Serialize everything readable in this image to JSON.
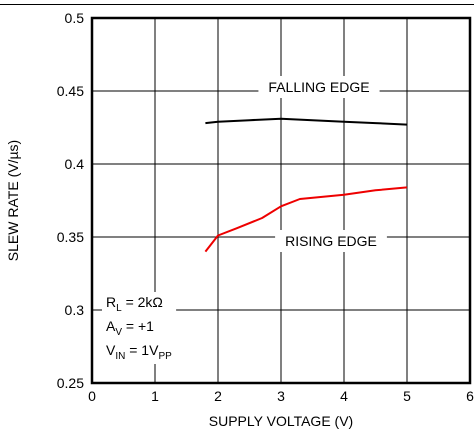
{
  "chart_data": {
    "type": "line",
    "xlabel": "SUPPLY VOLTAGE (V)",
    "ylabel": "SLEW RATE (V/µs)",
    "xlim": [
      0,
      6
    ],
    "ylim": [
      0.25,
      0.5
    ],
    "x_ticks": [
      "0",
      "1",
      "2",
      "3",
      "4",
      "5",
      "6"
    ],
    "y_ticks": [
      "0.25",
      "0.3",
      "0.35",
      "0.4",
      "0.45",
      "0.5"
    ],
    "grid": true,
    "series": [
      {
        "name": "FALLING EDGE",
        "color": "#000000",
        "x": [
          1.8,
          2.0,
          2.5,
          3.0,
          3.5,
          4.0,
          4.5,
          5.0
        ],
        "y": [
          0.428,
          0.429,
          0.43,
          0.431,
          0.43,
          0.429,
          0.428,
          0.427
        ]
      },
      {
        "name": "RISING EDGE",
        "color": "#ee0000",
        "x": [
          1.8,
          2.0,
          2.3,
          2.7,
          3.0,
          3.3,
          4.0,
          4.5,
          5.0
        ],
        "y": [
          0.34,
          0.351,
          0.356,
          0.363,
          0.371,
          0.376,
          0.379,
          0.382,
          0.384
        ]
      }
    ],
    "conditions": {
      "rl": {
        "main": "R",
        "sub": "L",
        "rest": " = 2kΩ"
      },
      "av": {
        "main": "A",
        "sub": "V",
        "rest": " = +1"
      },
      "vin": {
        "main": "V",
        "sub": "IN",
        "rest": " = 1V",
        "sub2": "PP"
      }
    }
  }
}
